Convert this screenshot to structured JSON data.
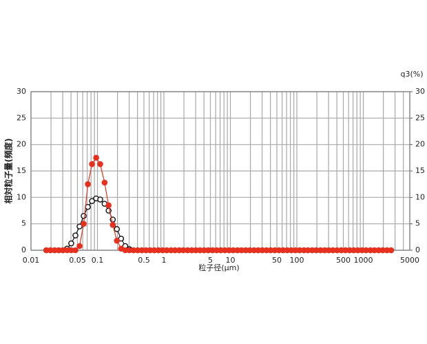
{
  "chart_data": {
    "type": "scatter",
    "ylabel": "相対粒子量(頻度)",
    "xlabel": "粒子径(μm)",
    "y2label": "q3(%)",
    "xscale": "log",
    "grid": true,
    "xlim": [
      0.01,
      5000
    ],
    "xticks": [
      0.01,
      0.05,
      0.1,
      0.5,
      1,
      5,
      10,
      50,
      100,
      500,
      1000,
      5000
    ],
    "xgrid_minor": [
      0.02,
      0.03,
      0.04,
      0.06,
      0.07,
      0.08,
      0.09,
      0.2,
      0.3,
      0.4,
      0.6,
      0.7,
      0.8,
      0.9,
      2,
      3,
      4,
      6,
      7,
      8,
      9,
      20,
      30,
      40,
      60,
      70,
      80,
      90,
      200,
      300,
      400,
      600,
      700,
      800,
      900,
      2000,
      3000,
      4000
    ],
    "ylim": [
      0,
      30
    ],
    "yticks": [
      0,
      5,
      10,
      15,
      20,
      25,
      30
    ],
    "y2lim": [
      0,
      30
    ],
    "y2ticks": [
      0,
      5,
      10,
      15,
      20,
      25,
      30
    ],
    "x": [
      0.017,
      0.0196,
      0.0227,
      0.0262,
      0.0302,
      0.0349,
      0.0403,
      0.0466,
      0.0538,
      0.0621,
      0.0717,
      0.0828,
      0.0956,
      0.11,
      0.128,
      0.147,
      0.17,
      0.196,
      0.227,
      0.262,
      0.302,
      0.349,
      0.403,
      0.466,
      0.538,
      0.621,
      0.717,
      0.828,
      0.956,
      1.1,
      1.28,
      1.47,
      1.7,
      1.96,
      2.27,
      2.62,
      3.02,
      3.49,
      4.03,
      4.66,
      5.38,
      6.21,
      7.17,
      8.28,
      9.56,
      11.0,
      12.8,
      14.7,
      17.0,
      19.6,
      22.7,
      26.2,
      30.2,
      34.9,
      40.3,
      46.6,
      53.8,
      62.1,
      71.7,
      82.8,
      95.6,
      110,
      128,
      147,
      170,
      196,
      227,
      262,
      302,
      349,
      403,
      466,
      538,
      621,
      717,
      828,
      956,
      1100,
      1280,
      1470,
      1700,
      1960,
      2270,
      2620
    ],
    "series": [
      {
        "color": "#111111",
        "fill": "#ffffff",
        "values": [
          0,
          0,
          0,
          0,
          0,
          0.3,
          1.3,
          2.8,
          4.5,
          6.5,
          8.2,
          9.3,
          9.8,
          9.6,
          8.8,
          7.5,
          5.8,
          4.0,
          2.2,
          0.8,
          0.2,
          0,
          0,
          0,
          0,
          0,
          0,
          0,
          0,
          0,
          0,
          0,
          0,
          0,
          0,
          0,
          0,
          0,
          0,
          0,
          0,
          0,
          0,
          0,
          0,
          0,
          0,
          0,
          0,
          0,
          0,
          0,
          0,
          0,
          0,
          0,
          0,
          0,
          0,
          0,
          0,
          0,
          0,
          0,
          0,
          0,
          0,
          0,
          0,
          0,
          0,
          0,
          0,
          0,
          0,
          0,
          0,
          0,
          0,
          0,
          0,
          0,
          0,
          0
        ]
      },
      {
        "color": "#e8301e",
        "fill": "#e8301e",
        "values": [
          0,
          0,
          0,
          0,
          0,
          0,
          0,
          0,
          0.8,
          5.0,
          12.5,
          16.3,
          17.5,
          16.3,
          12.8,
          8.5,
          4.8,
          1.8,
          0.3,
          0,
          0,
          0,
          0,
          0,
          0,
          0,
          0,
          0,
          0,
          0,
          0,
          0,
          0,
          0,
          0,
          0,
          0,
          0,
          0,
          0,
          0,
          0,
          0,
          0,
          0,
          0,
          0,
          0,
          0,
          0,
          0,
          0,
          0,
          0,
          0,
          0,
          0,
          0,
          0,
          0,
          0,
          0,
          0,
          0,
          0,
          0,
          0,
          0,
          0,
          0,
          0,
          0,
          0,
          0,
          0,
          0,
          0,
          0,
          0,
          0,
          0,
          0,
          0,
          0
        ]
      }
    ]
  }
}
